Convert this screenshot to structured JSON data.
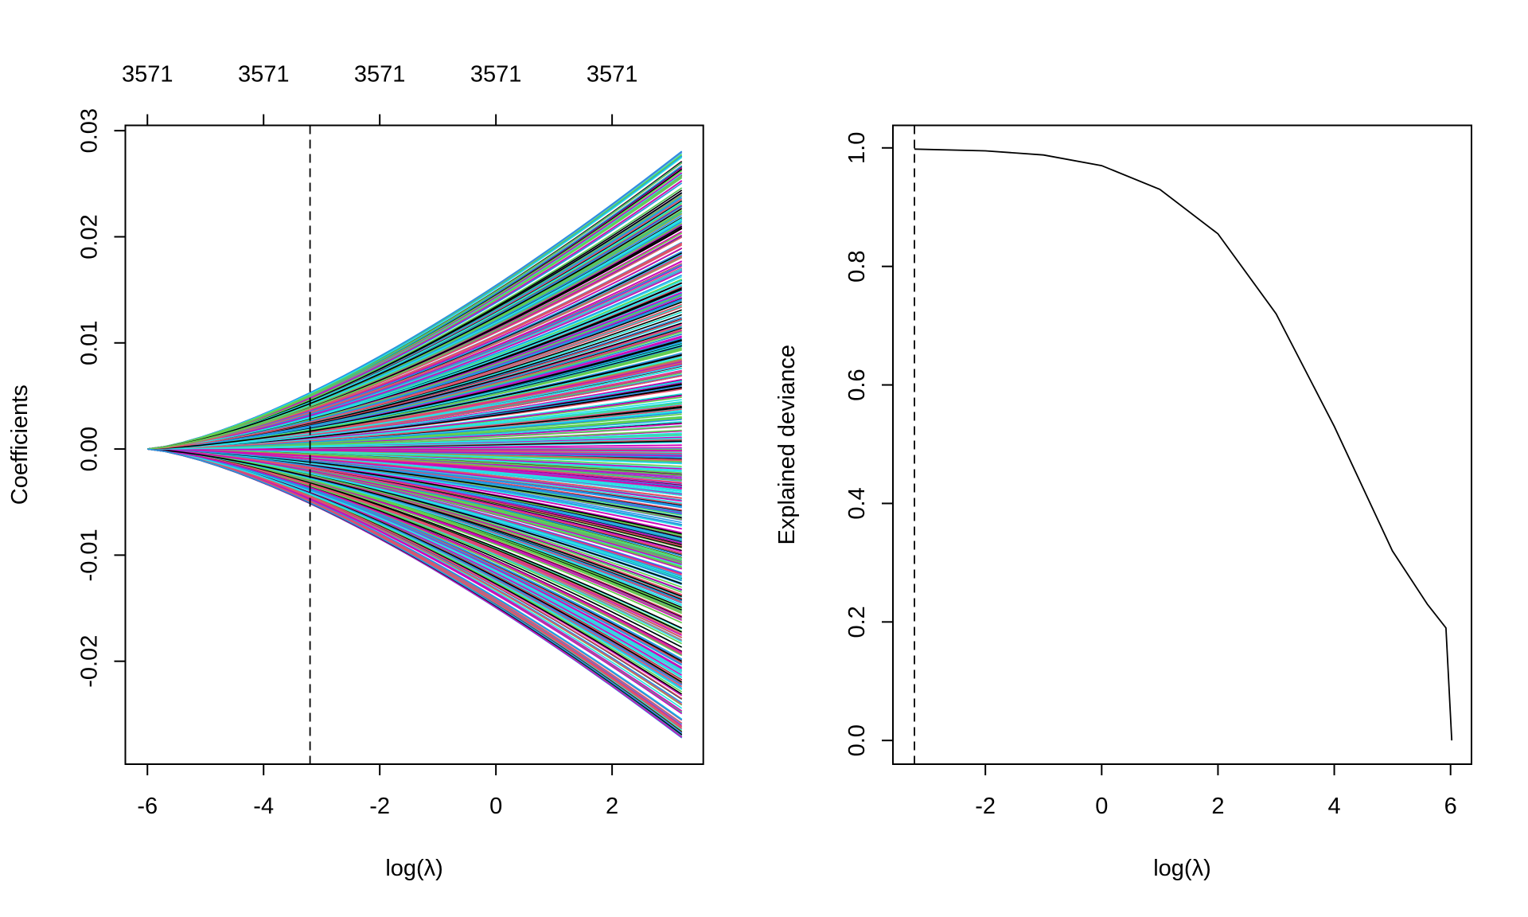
{
  "chart_data": [
    {
      "type": "line",
      "title": "",
      "xlabel": "log(λ)",
      "ylabel": "Coefficients",
      "xlim": [
        -6.38,
        3.57
      ],
      "ylim": [
        -0.0297,
        0.0305
      ],
      "x_ticks": [
        -6,
        -4,
        -2,
        0,
        2
      ],
      "x_tick_labels": [
        "-6",
        "-4",
        "-2",
        "0",
        "2"
      ],
      "y_ticks": [
        -0.02,
        -0.01,
        0.0,
        0.01,
        0.02,
        0.03
      ],
      "y_tick_labels": [
        "-0.02",
        "-0.01",
        "0.00",
        "0.01",
        "0.02",
        "0.03"
      ],
      "top_ticks": [
        -6,
        -4,
        -2,
        0,
        2
      ],
      "top_tick_labels": [
        "3571",
        "3571",
        "3571",
        "3571",
        "3571"
      ],
      "n_series": 3571,
      "x_range_of_paths": [
        -6.0,
        3.2
      ],
      "coef_at_x_min": 0.0,
      "coef_range_at_x_max": [
        -0.0275,
        0.0282
      ],
      "vline_x": -3.2,
      "vline_style": "dashed",
      "series_colors": [
        "#000000",
        "#DF536B",
        "#61D04F",
        "#2297E6",
        "#28E2E5",
        "#CD0BBC"
      ],
      "grid": false
    },
    {
      "type": "line",
      "title": "",
      "xlabel": "log(λ)",
      "ylabel": "Explained deviance",
      "xlim": [
        -3.59,
        6.36
      ],
      "ylim": [
        -0.04,
        1.038
      ],
      "x_ticks": [
        -2,
        0,
        2,
        4,
        6
      ],
      "x_tick_labels": [
        "-2",
        "0",
        "2",
        "4",
        "6"
      ],
      "y_ticks": [
        0.0,
        0.2,
        0.4,
        0.6,
        0.8,
        1.0
      ],
      "y_tick_labels": [
        "0.0",
        "0.2",
        "0.4",
        "0.6",
        "0.8",
        "1.0"
      ],
      "x": [
        -3.22,
        -2,
        -1,
        0,
        1,
        2,
        3,
        4,
        5,
        5.6,
        5.92,
        6.02
      ],
      "y": [
        0.998,
        0.995,
        0.988,
        0.97,
        0.93,
        0.855,
        0.72,
        0.53,
        0.32,
        0.23,
        0.19,
        0.0
      ],
      "vline_x": -3.22,
      "vline_style": "dashed",
      "line_color": "#000000",
      "grid": false
    }
  ]
}
